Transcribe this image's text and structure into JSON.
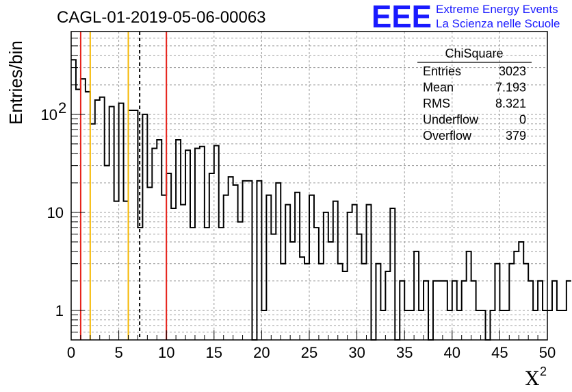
{
  "chart_data": {
    "type": "bar",
    "title": "CAGL-01-2019-05-06-00063",
    "xlabel": "X",
    "xlabel_superscript": "2",
    "ylabel": "Entries/bin",
    "y_scale": "log",
    "xlim": [
      0,
      50
    ],
    "ylim": [
      0.5,
      700
    ],
    "grid": true,
    "bin_width": 0.5,
    "x_ticks": [
      "0",
      "5",
      "10",
      "15",
      "20",
      "25",
      "30",
      "35",
      "40",
      "45",
      "50"
    ],
    "y_ticks": [
      {
        "value": 1,
        "label": "1"
      },
      {
        "value": 10,
        "label": "10"
      },
      {
        "value": 100,
        "label": "10",
        "exponent": "2"
      }
    ],
    "values": [
      360,
      180,
      230,
      170,
      80,
      140,
      150,
      30,
      120,
      13,
      130,
      13,
      110,
      110,
      7,
      100,
      18,
      45,
      55,
      15,
      25,
      11,
      55,
      12,
      43,
      7,
      45,
      47,
      7,
      25,
      48,
      7,
      15,
      23,
      19,
      8,
      21,
      21,
      0.5,
      21,
      1,
      15,
      6,
      20,
      3,
      12,
      5,
      16,
      3.5,
      3,
      15,
      7,
      3,
      10,
      5,
      13,
      3,
      2.5,
      10,
      12,
      6,
      3,
      12,
      0.5,
      3,
      1,
      2.5,
      11,
      0.5,
      2,
      1,
      1,
      4,
      1,
      2,
      0.5,
      2,
      2,
      2,
      1,
      2,
      1,
      2,
      4,
      2,
      1,
      1,
      0.5,
      1,
      3,
      1,
      1,
      3,
      4,
      5,
      3,
      2,
      1,
      2,
      1,
      1,
      2,
      1,
      1,
      2
    ],
    "vertical_lines": [
      {
        "x": 1,
        "color": "#e6221a",
        "dashed": false
      },
      {
        "x": 2,
        "color": "#f5b800",
        "dashed": false
      },
      {
        "x": 6,
        "color": "#f5b800",
        "dashed": false
      },
      {
        "x": 7.193,
        "color": "#000000",
        "dashed": true
      },
      {
        "x": 10,
        "color": "#e6221a",
        "dashed": false
      }
    ],
    "stats": {
      "name": "ChiSquare",
      "rows": [
        {
          "label": "Entries",
          "value": "3023"
        },
        {
          "label": "Mean",
          "value": "7.193"
        },
        {
          "label": "RMS",
          "value": "8.321"
        },
        {
          "label": "Underflow",
          "value": "0"
        },
        {
          "label": "Overflow",
          "value": "379"
        }
      ]
    }
  },
  "logo": {
    "letters": "EEE",
    "line1": "Extreme Energy Events",
    "line2": "La Scienza nelle Scuole",
    "color": "#1a1aff"
  }
}
